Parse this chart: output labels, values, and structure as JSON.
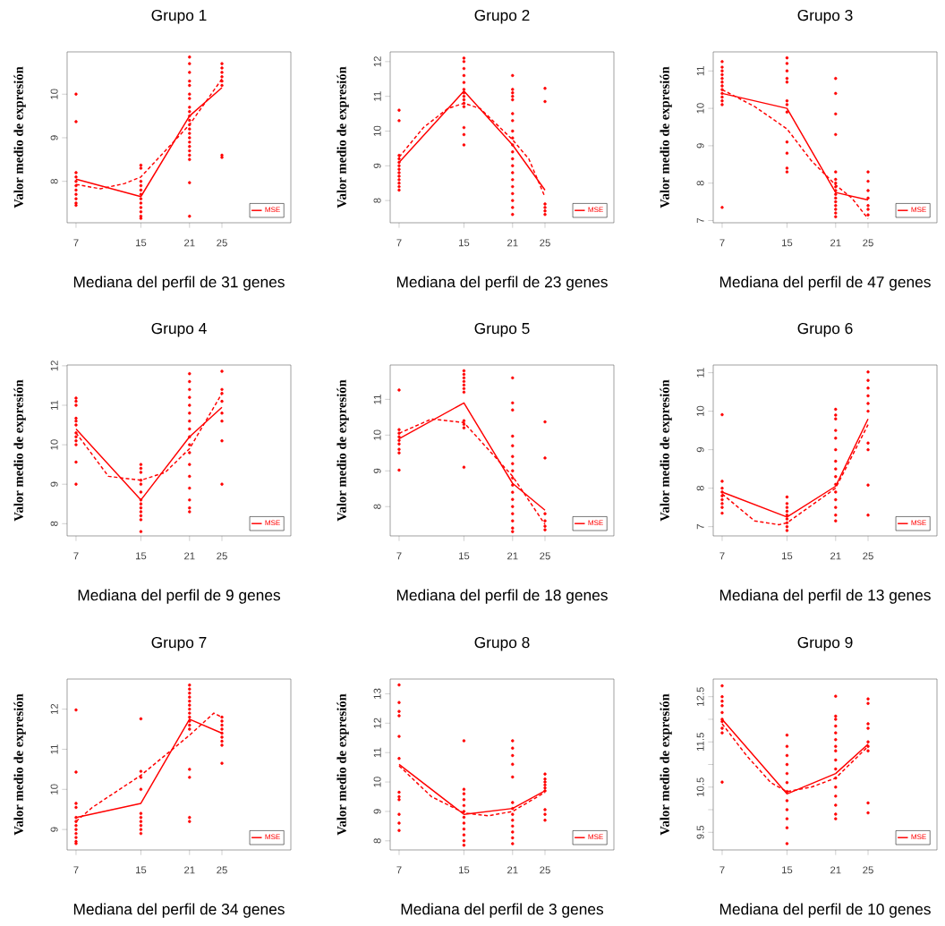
{
  "chart_data": [
    {
      "type": "scatter",
      "title": "Grupo 1",
      "xlabel": "Mediana del perfil de 31 genes",
      "ylabel": "Valor medio de expresión",
      "xlim": [
        5.9,
        33.5
      ],
      "xticks": [
        7,
        15,
        21,
        25
      ],
      "ylim": [
        7.05,
        10.97
      ],
      "yticks": [
        8,
        9,
        10
      ],
      "legend": "bottom right",
      "series": [
        {
          "color": "#ff0000",
          "marker": "circle",
          "x": [
            7,
            7,
            7,
            7,
            7,
            7,
            7,
            7,
            7,
            7,
            7,
            15,
            15,
            15,
            15,
            15,
            15,
            15,
            15,
            15,
            15,
            15,
            15,
            21,
            21,
            21,
            21,
            21,
            21,
            21,
            21,
            21,
            21,
            21,
            21,
            21,
            21,
            21,
            21,
            21,
            21,
            21,
            21,
            21,
            21,
            25,
            25,
            25,
            25,
            25,
            25,
            25,
            25
          ],
          "values": [
            10.0,
            9.37,
            8.2,
            8.1,
            8.0,
            7.9,
            7.8,
            7.7,
            7.6,
            7.5,
            7.45,
            8.37,
            8.3,
            8.0,
            7.9,
            7.8,
            7.7,
            7.6,
            7.5,
            7.4,
            7.3,
            7.2,
            7.15,
            10.85,
            10.7,
            10.5,
            10.3,
            10.2,
            10.0,
            9.9,
            9.7,
            9.6,
            9.5,
            9.4,
            9.3,
            9.2,
            9.1,
            9.0,
            8.9,
            8.8,
            8.7,
            8.6,
            8.5,
            7.97,
            7.2,
            10.7,
            10.6,
            10.5,
            10.4,
            10.3,
            10.2,
            8.6,
            8.55
          ]
        },
        {
          "type": "line",
          "name": "MSE",
          "color": "#ff0000",
          "marker": "none",
          "line_style": "solid",
          "x": [
            7,
            15,
            21,
            25
          ],
          "values": [
            8.05,
            7.65,
            9.5,
            10.15
          ]
        },
        {
          "type": "line",
          "color": "#ff0000",
          "marker": "none",
          "line_style": "dashed",
          "x": [
            7,
            10,
            13,
            15,
            18,
            21,
            25
          ],
          "values": [
            7.93,
            7.83,
            7.95,
            8.1,
            8.7,
            9.3,
            10.35
          ]
        }
      ]
    },
    {
      "type": "scatter",
      "title": "Grupo 2",
      "xlabel": "Mediana del perfil de 23 genes",
      "ylabel": "Valor medio de expresión",
      "xlim": [
        5.9,
        33.5
      ],
      "xticks": [
        7,
        15,
        21,
        25
      ],
      "ylim": [
        7.36,
        12.28
      ],
      "yticks": [
        8,
        9,
        10,
        11,
        12
      ],
      "legend": "bottom right",
      "series": [
        {
          "color": "#ff0000",
          "marker": "circle",
          "x": [
            7,
            7,
            7,
            7,
            7,
            7,
            7,
            7,
            7,
            7,
            7,
            7,
            7,
            15,
            15,
            15,
            15,
            15,
            15,
            15,
            15,
            15,
            15,
            15,
            15,
            15,
            15,
            21,
            21,
            21,
            21,
            21,
            21,
            21,
            21,
            21,
            21,
            21,
            21,
            21,
            21,
            21,
            21,
            21,
            21,
            21,
            21,
            25,
            25,
            25,
            25,
            25,
            25
          ],
          "values": [
            10.6,
            10.3,
            9.3,
            9.2,
            9.1,
            9.0,
            8.9,
            8.8,
            8.7,
            8.6,
            8.5,
            8.4,
            8.3,
            12.1,
            12.0,
            11.8,
            11.6,
            11.4,
            11.2,
            11.1,
            11.0,
            10.9,
            10.8,
            10.7,
            10.1,
            9.9,
            9.6,
            11.6,
            11.2,
            11.1,
            11.0,
            10.9,
            10.5,
            10.3,
            10.0,
            9.8,
            9.6,
            9.4,
            9.2,
            9.0,
            8.8,
            8.6,
            8.4,
            8.2,
            8.0,
            7.8,
            7.6,
            11.23,
            10.85,
            7.9,
            7.8,
            7.7,
            7.6
          ]
        },
        {
          "type": "line",
          "name": "MSE",
          "color": "#ff0000",
          "marker": "none",
          "line_style": "solid",
          "x": [
            7,
            15,
            21,
            25
          ],
          "values": [
            9.1,
            11.15,
            9.6,
            8.3
          ]
        },
        {
          "type": "line",
          "color": "#ff0000",
          "marker": "none",
          "line_style": "dashed",
          "x": [
            7,
            10,
            13,
            15,
            17,
            21,
            23,
            25
          ],
          "values": [
            9.25,
            10.1,
            10.65,
            10.8,
            10.65,
            9.75,
            9.2,
            8.1
          ]
        }
      ]
    },
    {
      "type": "scatter",
      "title": "Grupo 3",
      "xlabel": "Mediana del perfil de 47 genes",
      "ylabel": "Valor medio de expresión",
      "xlim": [
        5.9,
        33.5
      ],
      "xticks": [
        7,
        15,
        21,
        25
      ],
      "ylim": [
        6.94,
        11.51
      ],
      "yticks": [
        7,
        8,
        9,
        10,
        11
      ],
      "legend": "bottom right",
      "series": [
        {
          "color": "#ff0000",
          "marker": "circle",
          "x": [
            7,
            7,
            7,
            7,
            7,
            7,
            7,
            7,
            7,
            7,
            7,
            7,
            7,
            15,
            15,
            15,
            15,
            15,
            15,
            15,
            15,
            15,
            15,
            15,
            15,
            21,
            21,
            21,
            21,
            21,
            21,
            21,
            21,
            21,
            21,
            21,
            21,
            21,
            21,
            21,
            21,
            25,
            25,
            25,
            25,
            25,
            25,
            25
          ],
          "values": [
            11.25,
            11.1,
            11.0,
            10.9,
            10.8,
            10.7,
            10.6,
            10.5,
            10.4,
            10.3,
            10.2,
            10.1,
            7.35,
            11.35,
            11.2,
            11.0,
            10.8,
            10.7,
            10.2,
            10.1,
            9.9,
            9.1,
            8.8,
            8.4,
            8.3,
            10.8,
            10.4,
            9.85,
            9.3,
            8.3,
            8.1,
            8.0,
            7.9,
            7.8,
            7.7,
            7.6,
            7.5,
            7.4,
            7.3,
            7.2,
            7.1,
            8.3,
            8.05,
            7.8,
            7.6,
            7.4,
            7.3,
            7.15
          ]
        },
        {
          "type": "line",
          "name": "MSE",
          "color": "#ff0000",
          "marker": "none",
          "line_style": "solid",
          "x": [
            7,
            15,
            21,
            25
          ],
          "values": [
            10.4,
            10.0,
            7.75,
            7.55
          ]
        },
        {
          "type": "line",
          "color": "#ff0000",
          "marker": "none",
          "line_style": "dashed",
          "x": [
            7,
            11,
            15,
            18,
            21,
            23,
            25
          ],
          "values": [
            10.5,
            10.05,
            9.45,
            8.6,
            7.95,
            7.6,
            7.05
          ]
        }
      ]
    },
    {
      "type": "scatter",
      "title": "Grupo 4",
      "xlabel": "Mediana del perfil de 9 genes",
      "ylabel": "Valor medio de expresión",
      "xlim": [
        5.9,
        33.5
      ],
      "xticks": [
        7,
        15,
        21,
        25
      ],
      "ylim": [
        7.69,
        12.02
      ],
      "yticks": [
        8,
        9,
        10,
        11,
        12
      ],
      "legend": "bottom right",
      "series": [
        {
          "color": "#ff0000",
          "marker": "circle",
          "x": [
            7,
            7,
            7,
            7,
            7,
            7,
            7,
            7,
            7,
            7,
            7,
            7,
            15,
            15,
            15,
            15,
            15,
            15,
            15,
            15,
            15,
            15,
            15,
            15,
            15,
            21,
            21,
            21,
            21,
            21,
            21,
            21,
            21,
            21,
            21,
            21,
            21,
            21,
            21,
            21,
            21,
            21,
            25,
            25,
            25,
            25,
            25,
            25,
            25,
            25
          ],
          "values": [
            11.18,
            11.1,
            11.0,
            10.67,
            10.6,
            10.5,
            10.3,
            10.2,
            10.1,
            10.0,
            9.56,
            9.0,
            9.5,
            9.4,
            9.3,
            9.1,
            9.0,
            8.8,
            8.6,
            8.5,
            8.4,
            8.3,
            8.2,
            8.1,
            7.8,
            11.8,
            11.6,
            11.4,
            11.2,
            11.0,
            10.8,
            10.6,
            10.4,
            10.2,
            10.0,
            9.8,
            9.5,
            9.2,
            8.9,
            8.6,
            8.4,
            8.3,
            11.86,
            11.4,
            11.3,
            11.1,
            10.8,
            10.6,
            10.1,
            9.0
          ]
        },
        {
          "type": "line",
          "name": "MSE",
          "color": "#ff0000",
          "marker": "none",
          "line_style": "solid",
          "x": [
            7,
            15,
            21,
            25
          ],
          "values": [
            10.4,
            8.6,
            10.2,
            10.95
          ]
        },
        {
          "type": "line",
          "color": "#ff0000",
          "marker": "none",
          "line_style": "dashed",
          "x": [
            7,
            11,
            15,
            18,
            21,
            25
          ],
          "values": [
            10.3,
            9.2,
            9.1,
            9.3,
            9.9,
            11.3
          ]
        }
      ]
    },
    {
      "type": "scatter",
      "title": "Grupo 5",
      "xlabel": "Mediana del perfil de 18 genes",
      "ylabel": "Valor medio de expresión",
      "xlim": [
        5.9,
        33.5
      ],
      "xticks": [
        7,
        15,
        21,
        25
      ],
      "ylim": [
        7.18,
        11.96
      ],
      "yticks": [
        8,
        9,
        10,
        11
      ],
      "legend": "bottom right",
      "series": [
        {
          "color": "#ff0000",
          "marker": "circle",
          "x": [
            7,
            7,
            7,
            7,
            7,
            7,
            7,
            7,
            7,
            15,
            15,
            15,
            15,
            15,
            15,
            15,
            15,
            15,
            15,
            15,
            21,
            21,
            21,
            21,
            21,
            21,
            21,
            21,
            21,
            21,
            21,
            21,
            21,
            21,
            21,
            21,
            21,
            25,
            25,
            25,
            25,
            25,
            25
          ],
          "values": [
            11.26,
            10.15,
            10.05,
            9.95,
            9.85,
            9.75,
            9.6,
            9.5,
            9.02,
            11.8,
            11.7,
            11.6,
            11.5,
            11.4,
            11.3,
            11.2,
            10.4,
            10.3,
            10.2,
            9.1,
            11.6,
            10.9,
            10.7,
            9.97,
            9.7,
            9.4,
            9.2,
            9.0,
            8.8,
            8.6,
            8.4,
            8.2,
            8.0,
            7.8,
            7.6,
            7.4,
            7.3,
            10.37,
            9.36,
            7.8,
            7.6,
            7.45,
            7.35
          ]
        },
        {
          "type": "line",
          "name": "MSE",
          "color": "#ff0000",
          "marker": "none",
          "line_style": "solid",
          "x": [
            7,
            15,
            21,
            25
          ],
          "values": [
            9.9,
            10.9,
            8.65,
            7.9
          ]
        },
        {
          "type": "line",
          "color": "#ff0000",
          "marker": "none",
          "line_style": "dashed",
          "x": [
            7,
            11,
            15,
            18,
            21,
            25
          ],
          "values": [
            10.05,
            10.45,
            10.35,
            9.6,
            8.85,
            7.5
          ]
        }
      ]
    },
    {
      "type": "scatter",
      "title": "Grupo 6",
      "xlabel": "Mediana del perfil de 13 genes",
      "ylabel": "Valor medio de expresión",
      "xlim": [
        5.9,
        33.5
      ],
      "xticks": [
        7,
        15,
        21,
        25
      ],
      "ylim": [
        6.76,
        11.2
      ],
      "yticks": [
        7,
        8,
        9,
        10,
        11
      ],
      "legend": "bottom right",
      "series": [
        {
          "color": "#ff0000",
          "marker": "circle",
          "x": [
            7,
            7,
            7,
            7,
            7,
            7,
            7,
            7,
            7,
            15,
            15,
            15,
            15,
            15,
            15,
            15,
            15,
            15,
            21,
            21,
            21,
            21,
            21,
            21,
            21,
            21,
            21,
            21,
            21,
            21,
            21,
            21,
            21,
            25,
            25,
            25,
            25,
            25,
            25,
            25,
            25,
            25,
            25
          ],
          "values": [
            9.91,
            8.18,
            8.0,
            7.9,
            7.8,
            7.7,
            7.6,
            7.5,
            7.35,
            7.77,
            7.6,
            7.5,
            7.4,
            7.3,
            7.2,
            7.1,
            7.0,
            6.9,
            10.05,
            9.9,
            9.8,
            9.5,
            9.3,
            9.0,
            8.7,
            8.5,
            8.3,
            8.1,
            7.9,
            7.7,
            7.5,
            7.3,
            7.15,
            11.02,
            10.8,
            10.6,
            10.4,
            10.2,
            10.0,
            9.17,
            9.0,
            8.08,
            7.3
          ]
        },
        {
          "type": "line",
          "name": "MSE",
          "color": "#ff0000",
          "marker": "none",
          "line_style": "solid",
          "x": [
            7,
            15,
            21,
            25
          ],
          "values": [
            7.9,
            7.25,
            8.05,
            9.8
          ]
        },
        {
          "type": "line",
          "color": "#ff0000",
          "marker": "none",
          "line_style": "dashed",
          "x": [
            7,
            11,
            14,
            15,
            18,
            21,
            25
          ],
          "values": [
            7.85,
            7.15,
            7.05,
            7.1,
            7.55,
            8.0,
            9.65
          ]
        }
      ]
    },
    {
      "type": "scatter",
      "title": "Grupo 7",
      "xlabel": "Mediana del perfil de 34 genes",
      "ylabel": "Valor medio de expresión",
      "xlim": [
        5.9,
        33.5
      ],
      "xticks": [
        7,
        15,
        21,
        25
      ],
      "ylim": [
        8.49,
        12.75
      ],
      "yticks": [
        9,
        10,
        11,
        12
      ],
      "legend": "bottom right",
      "series": [
        {
          "color": "#ff0000",
          "marker": "circle",
          "x": [
            7,
            7,
            7,
            7,
            7,
            7,
            7,
            7,
            7,
            7,
            7,
            7,
            15,
            15,
            15,
            15,
            15,
            15,
            15,
            15,
            15,
            15,
            21,
            21,
            21,
            21,
            21,
            21,
            21,
            21,
            21,
            21,
            21,
            21,
            21,
            21,
            21,
            21,
            25,
            25,
            25,
            25,
            25,
            25,
            25,
            25,
            25
          ],
          "values": [
            11.98,
            10.43,
            9.65,
            9.55,
            9.3,
            9.2,
            9.1,
            9.0,
            8.9,
            8.8,
            8.7,
            8.65,
            11.76,
            10.45,
            10.3,
            10.0,
            9.4,
            9.3,
            9.2,
            9.1,
            9.0,
            8.9,
            12.6,
            12.5,
            12.4,
            12.3,
            12.2,
            12.1,
            12.0,
            11.9,
            11.8,
            11.7,
            11.6,
            11.5,
            10.5,
            10.3,
            9.3,
            9.2,
            11.8,
            11.7,
            11.6,
            11.5,
            11.4,
            11.3,
            11.2,
            11.1,
            10.65
          ]
        },
        {
          "type": "line",
          "name": "MSE",
          "color": "#ff0000",
          "marker": "none",
          "line_style": "solid",
          "x": [
            7,
            15,
            21,
            25
          ],
          "values": [
            9.3,
            9.65,
            11.75,
            11.4
          ]
        },
        {
          "type": "line",
          "color": "#ff0000",
          "marker": "none",
          "line_style": "dashed",
          "x": [
            7,
            9,
            15,
            21,
            24,
            25
          ],
          "values": [
            9.2,
            9.55,
            10.35,
            11.35,
            11.9,
            11.8
          ]
        }
      ]
    },
    {
      "type": "scatter",
      "title": "Grupo 8",
      "xlabel": "Mediana del perfil de 3 genes",
      "ylabel": "Valor medio de expresión",
      "xlim": [
        5.9,
        33.5
      ],
      "xticks": [
        7,
        15,
        21,
        25
      ],
      "ylim": [
        7.69,
        13.5
      ],
      "yticks": [
        8,
        9,
        10,
        11,
        12,
        13
      ],
      "legend": "bottom right",
      "series": [
        {
          "color": "#ff0000",
          "marker": "circle",
          "x": [
            7,
            7,
            7,
            7,
            7,
            7,
            7,
            7,
            7,
            7,
            7,
            7,
            15,
            15,
            15,
            15,
            15,
            15,
            15,
            15,
            15,
            15,
            15,
            15,
            21,
            21,
            21,
            21,
            21,
            21,
            21,
            21,
            21,
            21,
            21,
            21,
            21,
            25,
            25,
            25,
            25,
            25,
            25,
            25,
            25,
            25
          ],
          "values": [
            13.3,
            12.7,
            12.4,
            12.25,
            11.55,
            10.8,
            9.65,
            9.5,
            9.4,
            8.9,
            8.6,
            8.35,
            11.4,
            9.75,
            9.6,
            9.4,
            9.2,
            9.0,
            8.8,
            8.6,
            8.4,
            8.2,
            8.0,
            7.85,
            11.4,
            11.15,
            10.9,
            10.6,
            10.17,
            9.3,
            9.1,
            8.9,
            8.7,
            8.5,
            8.3,
            8.1,
            7.9,
            10.27,
            10.1,
            10.0,
            9.9,
            9.8,
            9.7,
            9.06,
            8.9,
            8.7
          ]
        },
        {
          "type": "line",
          "name": "MSE",
          "color": "#ff0000",
          "marker": "none",
          "line_style": "solid",
          "x": [
            7,
            15,
            21,
            25
          ],
          "values": [
            10.6,
            8.9,
            9.1,
            9.7
          ]
        },
        {
          "type": "line",
          "color": "#ff0000",
          "marker": "none",
          "line_style": "dashed",
          "x": [
            7,
            11,
            15,
            18,
            21,
            25
          ],
          "values": [
            10.55,
            9.5,
            8.95,
            8.85,
            9.0,
            9.65
          ]
        }
      ]
    },
    {
      "type": "scatter",
      "title": "Grupo 9",
      "xlabel": "Mediana del perfil de 10 genes",
      "ylabel": "Valor medio de expresión",
      "xlim": [
        5.9,
        33.5
      ],
      "xticks": [
        7,
        15,
        21,
        25
      ],
      "ylim": [
        9.11,
        12.89
      ],
      "yticks": [
        9.5,
        {
          "value": 10,
          "label": null
        },
        10.5,
        {
          "value": 11,
          "label": null
        },
        11.5,
        {
          "value": 12,
          "label": null
        },
        12.5
      ],
      "legend": "bottom right",
      "series": [
        {
          "color": "#ff0000",
          "marker": "circle",
          "x": [
            7,
            7,
            7,
            7,
            7,
            7,
            7,
            7,
            7,
            7,
            15,
            15,
            15,
            15,
            15,
            15,
            15,
            15,
            15,
            15,
            15,
            15,
            21,
            21,
            21,
            21,
            21,
            21,
            21,
            21,
            21,
            21,
            21,
            21,
            21,
            21,
            21,
            21,
            25,
            25,
            25,
            25,
            25,
            25,
            25,
            25,
            25
          ],
          "values": [
            12.74,
            12.5,
            12.4,
            12.3,
            12.15,
            12.0,
            11.95,
            11.8,
            11.7,
            10.61,
            11.65,
            11.4,
            11.2,
            11.0,
            10.8,
            10.6,
            10.4,
            10.2,
            10.0,
            9.8,
            9.6,
            9.25,
            12.51,
            12.07,
            12.0,
            11.85,
            11.7,
            11.55,
            11.4,
            11.3,
            11.1,
            10.9,
            10.7,
            10.5,
            10.3,
            10.1,
            9.9,
            9.8,
            12.45,
            12.35,
            11.9,
            11.8,
            11.5,
            11.4,
            11.3,
            10.15,
            9.93
          ]
        },
        {
          "type": "line",
          "name": "MSE",
          "color": "#ff0000",
          "marker": "none",
          "line_style": "solid",
          "x": [
            7,
            15,
            21,
            25
          ],
          "values": [
            12.0,
            10.35,
            10.8,
            11.45
          ]
        },
        {
          "type": "line",
          "color": "#ff0000",
          "marker": "none",
          "line_style": "dashed",
          "x": [
            7,
            10,
            13,
            15,
            18,
            21,
            25
          ],
          "values": [
            11.9,
            11.2,
            10.6,
            10.4,
            10.5,
            10.7,
            11.4
          ]
        }
      ]
    }
  ]
}
